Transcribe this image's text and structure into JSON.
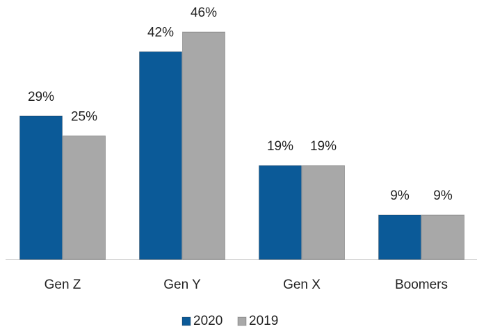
{
  "chart_data": {
    "type": "bar",
    "categories": [
      "Gen Z",
      "Gen Y",
      "Gen X",
      "Boomers"
    ],
    "series": [
      {
        "name": "2020",
        "color": "#0b5a98",
        "values": [
          29,
          42,
          19,
          9
        ],
        "value_labels": [
          "29%",
          "42%",
          "19%",
          "9%"
        ]
      },
      {
        "name": "2019",
        "color": "#a8a8a8",
        "values": [
          25,
          46,
          19,
          9
        ],
        "value_labels": [
          "25%",
          "46%",
          "19%",
          "9%"
        ]
      }
    ],
    "legend": "bottom"
  }
}
